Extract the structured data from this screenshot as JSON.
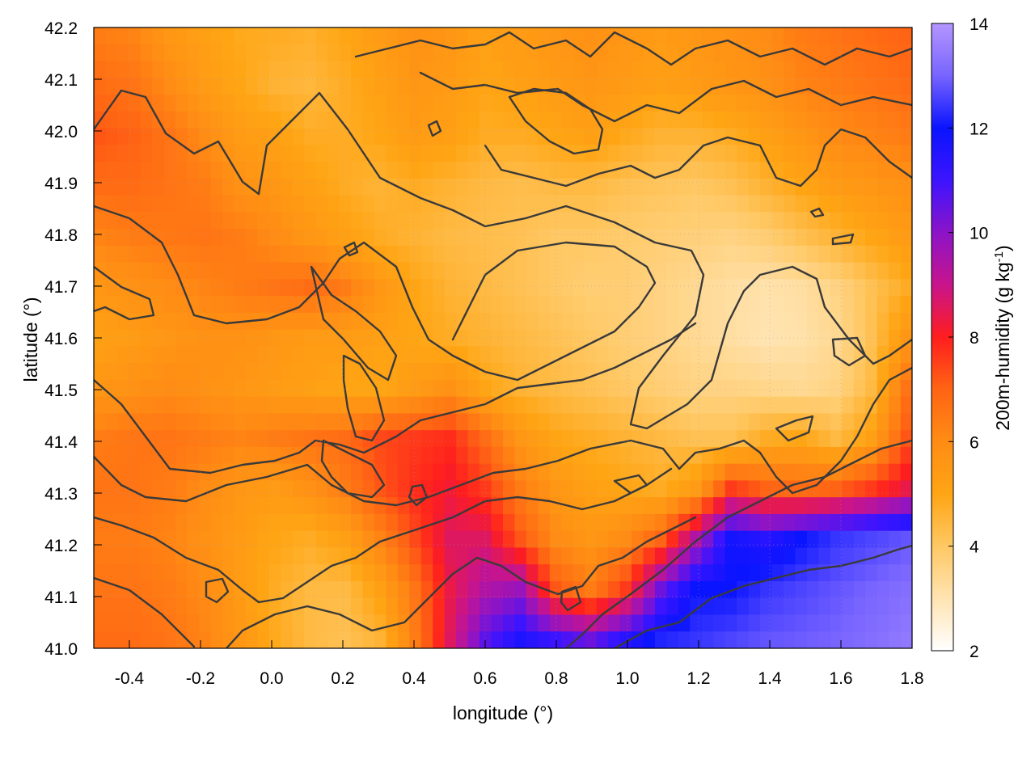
{
  "chart_data": {
    "type": "heatmap",
    "title": "",
    "xlabel": "longitude (°)",
    "ylabel": "latitude (°)",
    "xlim": [
      -0.5,
      1.8
    ],
    "ylim": [
      41.0,
      42.2
    ],
    "x_ticks": [
      "-0.4",
      "-0.2",
      "0.0",
      "0.2",
      "0.4",
      "0.6",
      "0.8",
      "1.0",
      "1.2",
      "1.4",
      "1.6",
      "1.8"
    ],
    "y_ticks": [
      "41.0",
      "41.1",
      "41.2",
      "41.3",
      "41.4",
      "41.5",
      "41.6",
      "41.7",
      "41.8",
      "41.9",
      "42.0",
      "42.1",
      "42.2"
    ],
    "grid": true,
    "colorbar": {
      "label": "200m-humidity (g kg-1)",
      "label_main": "200m-humidity (g kg",
      "label_sup": "-1",
      "label_end": ")",
      "range": [
        2,
        14
      ],
      "ticks": [
        "2",
        "4",
        "6",
        "8",
        "10",
        "12",
        "14"
      ],
      "palette": [
        {
          "value": 2,
          "color": "#ffffff"
        },
        {
          "value": 4,
          "color": "#ffc864"
        },
        {
          "value": 5,
          "color": "#ffa514"
        },
        {
          "value": 6,
          "color": "#ff8c14"
        },
        {
          "value": 7,
          "color": "#ff6414"
        },
        {
          "value": 8,
          "color": "#ff1e1e"
        },
        {
          "value": 9,
          "color": "#c8148c"
        },
        {
          "value": 10,
          "color": "#8c14c8"
        },
        {
          "value": 11,
          "color": "#3c14ff"
        },
        {
          "value": 12,
          "color": "#0a14ff"
        },
        {
          "value": 13,
          "color": "#7864ff"
        },
        {
          "value": 14,
          "color": "#b496ff"
        }
      ]
    },
    "field": {
      "nx": 24,
      "ny": 13,
      "x_start": -0.5,
      "x_end": 1.8,
      "y_start": 41.0,
      "y_end": 42.2,
      "rows_from_top": [
        [
          6.4,
          6.2,
          5.6,
          5.2,
          4.9,
          4.8,
          4.7,
          5.0,
          5.4,
          5.8,
          5.6,
          5.2,
          5.4,
          5.6,
          5.8,
          5.6,
          5.4,
          5.6,
          5.8,
          6.0,
          6.4,
          6.6,
          6.8,
          7.0
        ],
        [
          6.8,
          6.6,
          6.0,
          5.4,
          5.0,
          4.6,
          4.5,
          4.8,
          5.2,
          5.6,
          5.4,
          5.0,
          5.2,
          5.4,
          5.6,
          5.4,
          5.2,
          5.4,
          5.6,
          5.8,
          6.2,
          6.4,
          6.6,
          6.8
        ],
        [
          7.2,
          7.0,
          6.6,
          6.0,
          5.4,
          5.2,
          4.8,
          4.8,
          5.0,
          5.4,
          5.2,
          4.8,
          4.8,
          5.0,
          5.2,
          4.9,
          4.6,
          4.6,
          4.8,
          5.2,
          5.6,
          6.0,
          6.2,
          6.4
        ],
        [
          6.8,
          6.8,
          6.6,
          6.4,
          5.8,
          5.6,
          5.2,
          4.8,
          4.6,
          4.8,
          4.6,
          4.4,
          4.3,
          4.4,
          4.4,
          4.2,
          4.1,
          4.0,
          4.2,
          4.6,
          5.0,
          5.4,
          5.6,
          5.8
        ],
        [
          6.2,
          6.4,
          6.5,
          6.6,
          6.4,
          6.0,
          5.6,
          5.2,
          4.8,
          4.6,
          4.4,
          4.3,
          4.2,
          4.0,
          4.0,
          3.9,
          3.8,
          3.7,
          3.6,
          3.8,
          4.2,
          4.6,
          5.0,
          5.4
        ],
        [
          5.6,
          5.8,
          6.0,
          6.2,
          6.4,
          6.6,
          6.8,
          6.4,
          5.6,
          5.0,
          4.6,
          4.4,
          4.2,
          4.0,
          3.8,
          3.8,
          3.6,
          3.4,
          3.2,
          3.1,
          3.2,
          3.6,
          4.2,
          4.8
        ],
        [
          5.2,
          5.4,
          5.6,
          5.8,
          5.8,
          5.6,
          5.4,
          5.4,
          5.2,
          5.0,
          4.8,
          4.6,
          4.4,
          4.2,
          4.0,
          3.8,
          3.6,
          3.4,
          3.2,
          3.0,
          3.1,
          3.4,
          4.2,
          5.6
        ],
        [
          5.6,
          5.8,
          6.0,
          5.8,
          5.6,
          5.4,
          5.2,
          5.0,
          5.0,
          5.4,
          5.8,
          5.0,
          4.6,
          4.4,
          4.2,
          4.0,
          3.8,
          3.6,
          3.6,
          3.5,
          3.4,
          3.6,
          4.4,
          6.6
        ],
        [
          6.4,
          6.6,
          6.6,
          6.4,
          6.2,
          6.4,
          6.6,
          6.8,
          7.4,
          7.6,
          7.8,
          6.8,
          5.6,
          5.0,
          4.8,
          4.6,
          4.4,
          4.2,
          4.2,
          4.8,
          5.0,
          4.4,
          5.2,
          7.2
        ],
        [
          6.6,
          6.6,
          6.4,
          6.0,
          5.6,
          5.4,
          5.8,
          6.4,
          7.2,
          7.8,
          8.2,
          7.6,
          6.4,
          5.6,
          5.2,
          5.0,
          4.8,
          5.4,
          7.6,
          7.0,
          6.8,
          7.0,
          7.6,
          8.4
        ],
        [
          6.4,
          6.4,
          6.2,
          5.8,
          5.4,
          5.0,
          4.8,
          5.2,
          6.2,
          7.4,
          8.6,
          8.6,
          7.2,
          6.0,
          5.6,
          6.0,
          7.0,
          9.4,
          11.8,
          11.4,
          12.0,
          12.4,
          12.6,
          12.8
        ],
        [
          6.6,
          6.6,
          6.4,
          6.0,
          5.4,
          4.8,
          4.4,
          4.4,
          5.2,
          6.6,
          8.4,
          9.4,
          9.8,
          7.2,
          6.4,
          7.6,
          10.4,
          12.0,
          12.0,
          12.4,
          12.6,
          12.8,
          13.0,
          13.2
        ],
        [
          6.8,
          6.8,
          6.6,
          6.2,
          5.6,
          4.9,
          4.4,
          4.2,
          4.6,
          6.4,
          8.6,
          10.6,
          11.6,
          11.0,
          10.4,
          11.4,
          12.2,
          12.4,
          12.6,
          12.8,
          12.9,
          13.0,
          13.2,
          13.4
        ]
      ]
    }
  }
}
